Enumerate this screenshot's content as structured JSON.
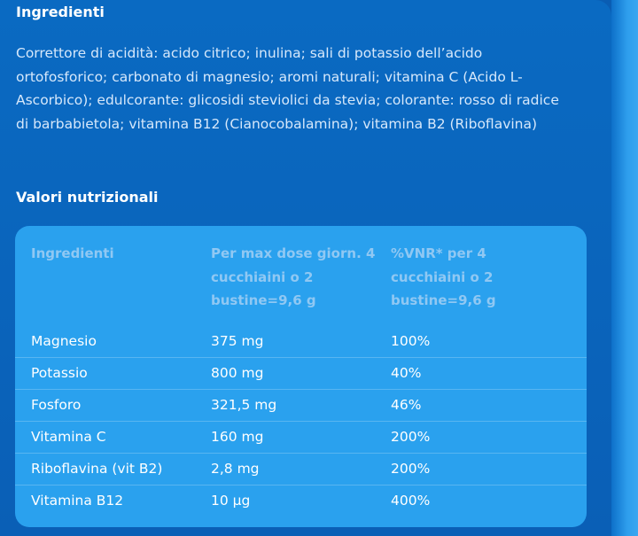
{
  "ingredients_section": {
    "title": "Ingredienti",
    "text": "Correttore di acidità: acido citrico; inulina; sali di potassio dell’acido ortofosforico; carbonato di magnesio; aromi naturali; vitamina C (Acido L-Ascorbico); edulcorante: glicosidi steviolici da stevia; colorante: rosso di radice di barbabietola; vitamina B12 (Cianocobalamina); vitamina B2 (Riboflavina)"
  },
  "nutrition_section": {
    "title": "Valori nutrizionali",
    "table": {
      "headers": [
        "Ingredienti",
        "Per max dose giorn. 4 cucchiaini o 2 bustine=9,6 g",
        "%VNR* per 4 cucchiaini o 2 bustine=9,6 g"
      ],
      "rows": [
        [
          "Magnesio",
          "375 mg",
          "100%"
        ],
        [
          "Potassio",
          "800 mg",
          "40%"
        ],
        [
          "Fosforo",
          "321,5 mg",
          "46%"
        ],
        [
          "Vitamina C",
          "160 mg",
          "200%"
        ],
        [
          "Riboflavina (vit B2)",
          "2,8 mg",
          "200%"
        ],
        [
          "Vitamina B12",
          "10 µg",
          "400%"
        ]
      ]
    }
  }
}
